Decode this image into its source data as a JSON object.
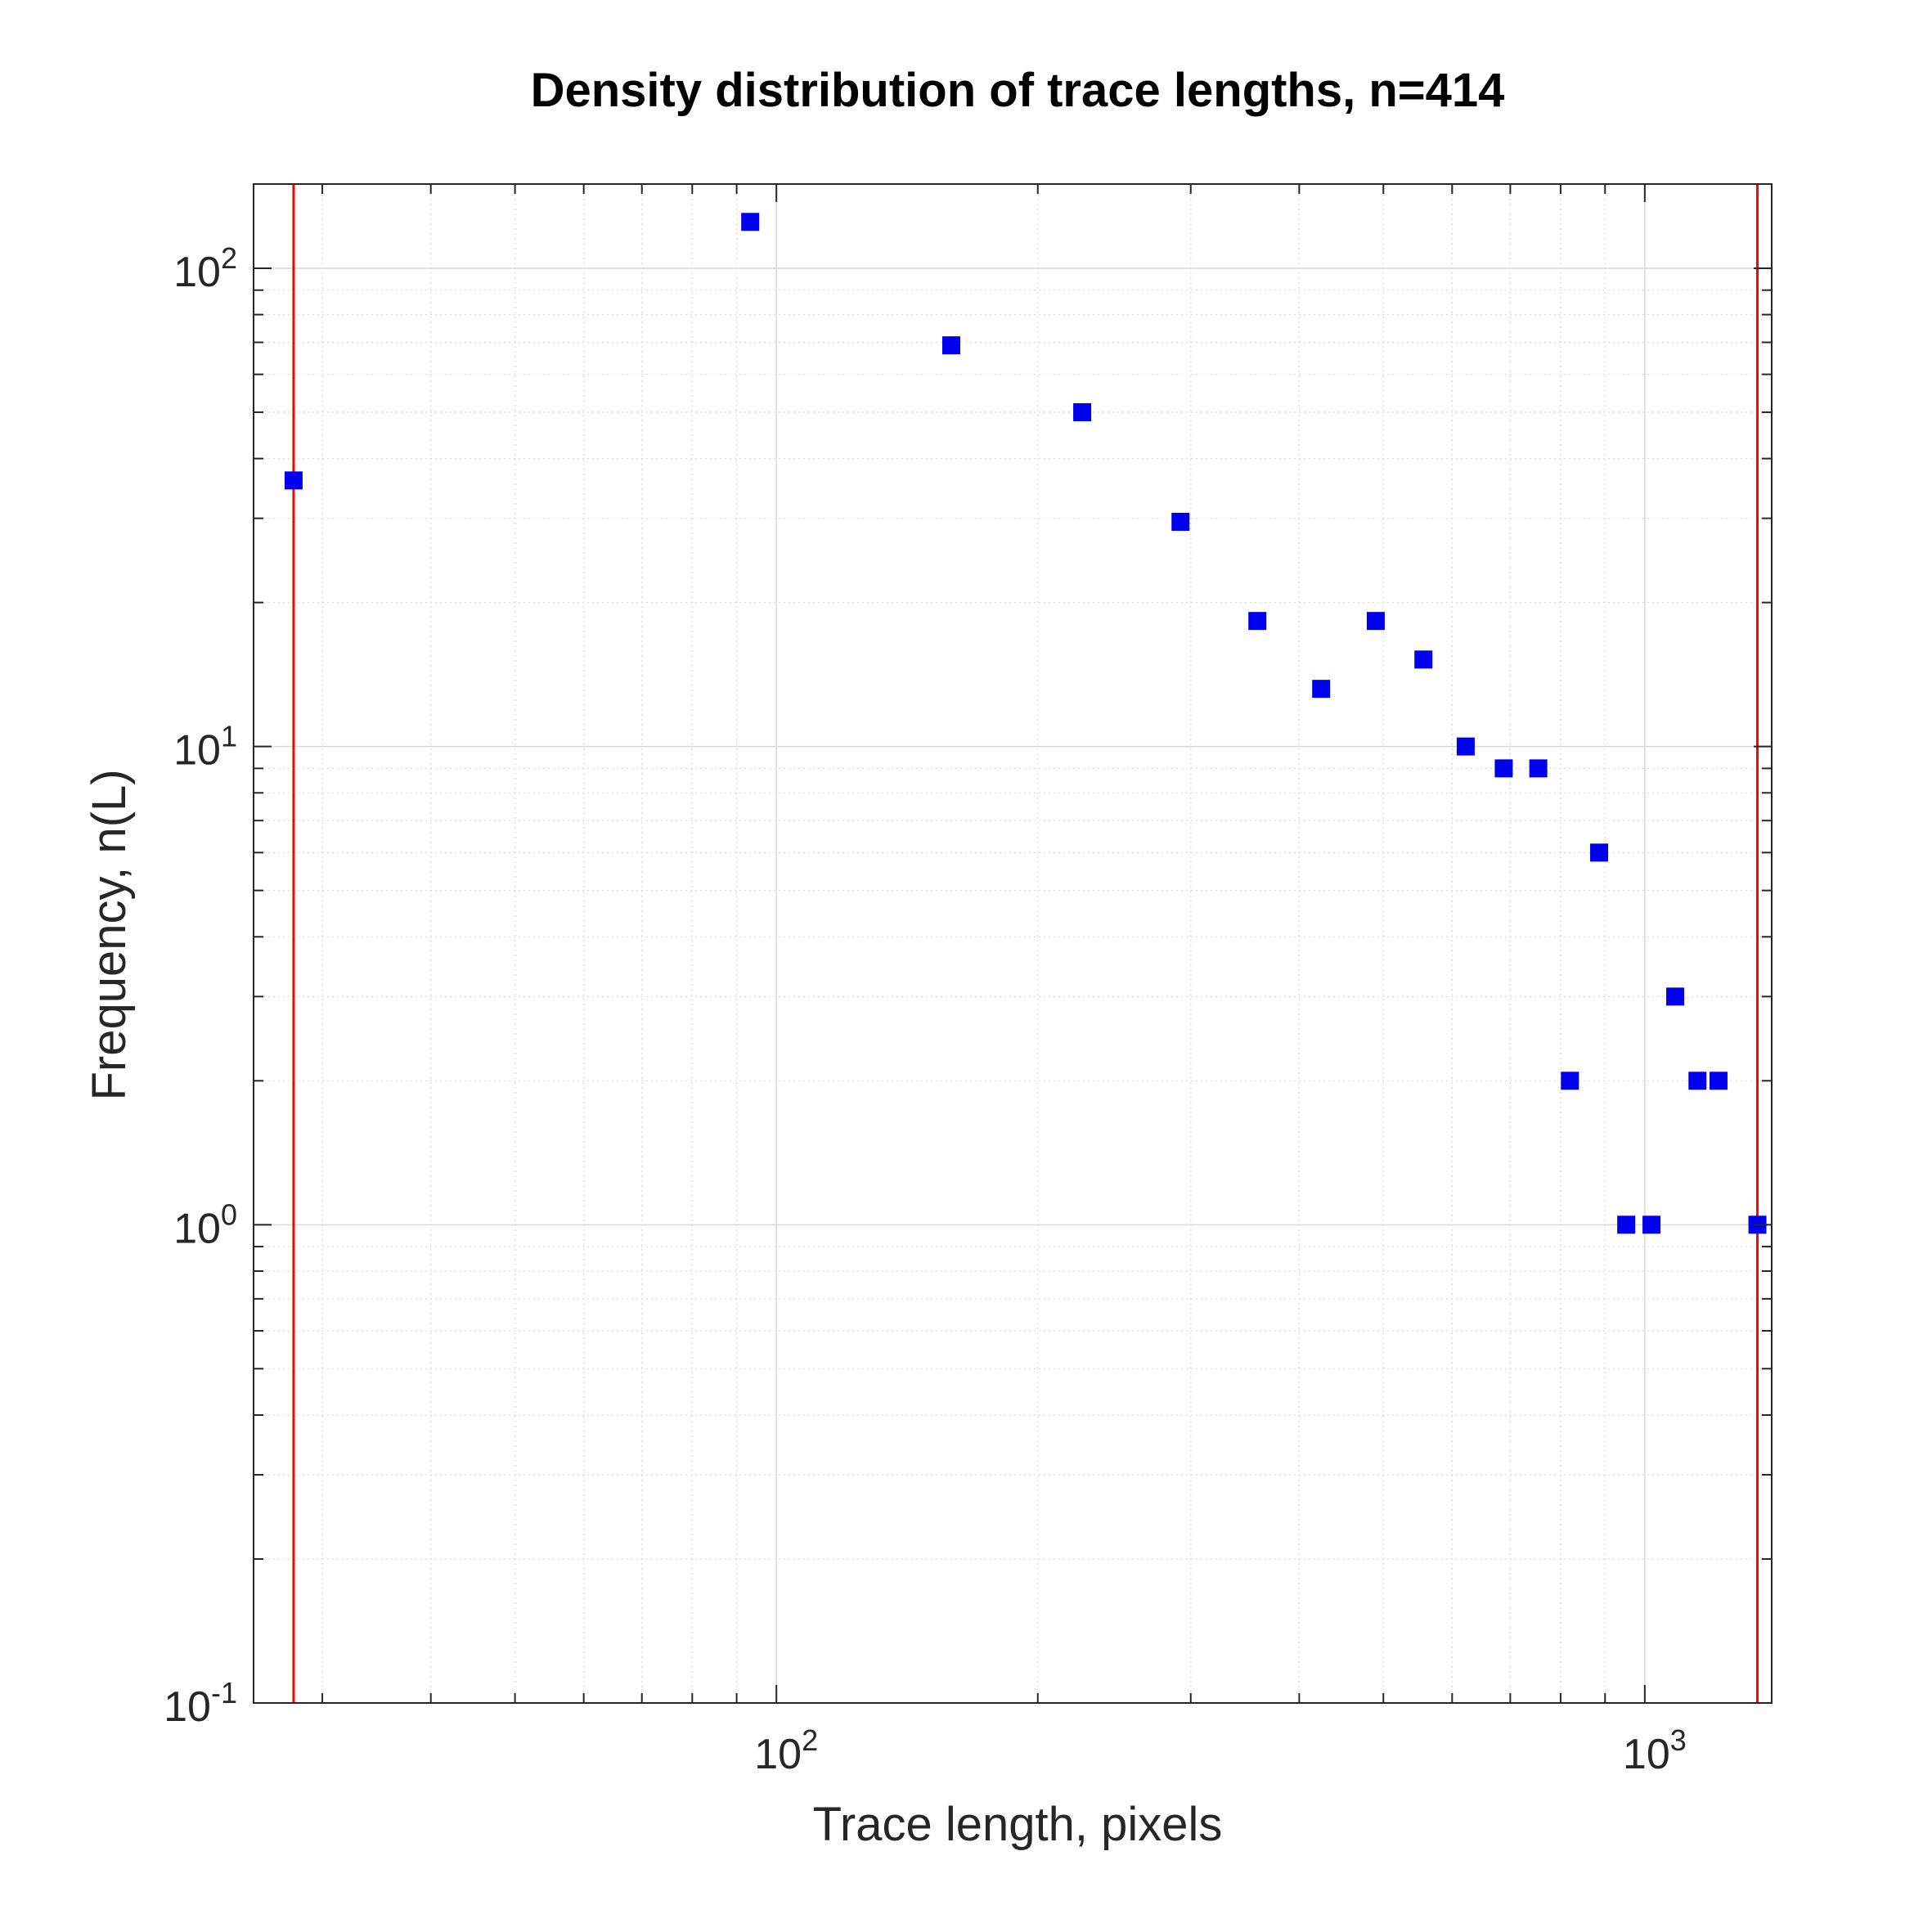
{
  "chart_data": {
    "type": "scatter",
    "title": "Density distribution of trace lengths, n=414",
    "xlabel": "Trace length, pixels",
    "ylabel": "Frequency, n(L)",
    "xscale": "log",
    "yscale": "log",
    "xlim": [
      25,
      1400
    ],
    "ylim": [
      0.1,
      150
    ],
    "grid": true,
    "x_ticks": [
      {
        "base": "10",
        "exp": "2",
        "value": 100
      },
      {
        "base": "10",
        "exp": "3",
        "value": 1000
      }
    ],
    "y_ticks": [
      {
        "base": "10",
        "exp": "-1",
        "value": 0.1
      },
      {
        "base": "10",
        "exp": "0",
        "value": 1
      },
      {
        "base": "10",
        "exp": "1",
        "value": 10
      },
      {
        "base": "10",
        "exp": "2",
        "value": 100
      }
    ],
    "series": [
      {
        "marker": "square",
        "color": "#0000ee",
        "points": [
          {
            "x": 27.8,
            "y": 36
          },
          {
            "x": 93.3,
            "y": 125
          },
          {
            "x": 159,
            "y": 69
          },
          {
            "x": 225,
            "y": 50
          },
          {
            "x": 292,
            "y": 29.5
          },
          {
            "x": 358,
            "y": 18.3
          },
          {
            "x": 424,
            "y": 13.2
          },
          {
            "x": 490,
            "y": 18.3
          },
          {
            "x": 556,
            "y": 15.2
          },
          {
            "x": 622,
            "y": 10
          },
          {
            "x": 688,
            "y": 9
          },
          {
            "x": 754,
            "y": 9
          },
          {
            "x": 820,
            "y": 2
          },
          {
            "x": 886,
            "y": 6
          },
          {
            "x": 952,
            "y": 1
          },
          {
            "x": 1018,
            "y": 1
          },
          {
            "x": 1084,
            "y": 3
          },
          {
            "x": 1150,
            "y": 2
          },
          {
            "x": 1216,
            "y": 2
          },
          {
            "x": 1348,
            "y": 1
          }
        ]
      }
    ],
    "vertical_lines": [
      {
        "x": 27.8,
        "color": "#ff0000"
      },
      {
        "x": 1348,
        "color": "#ff0000"
      }
    ]
  }
}
